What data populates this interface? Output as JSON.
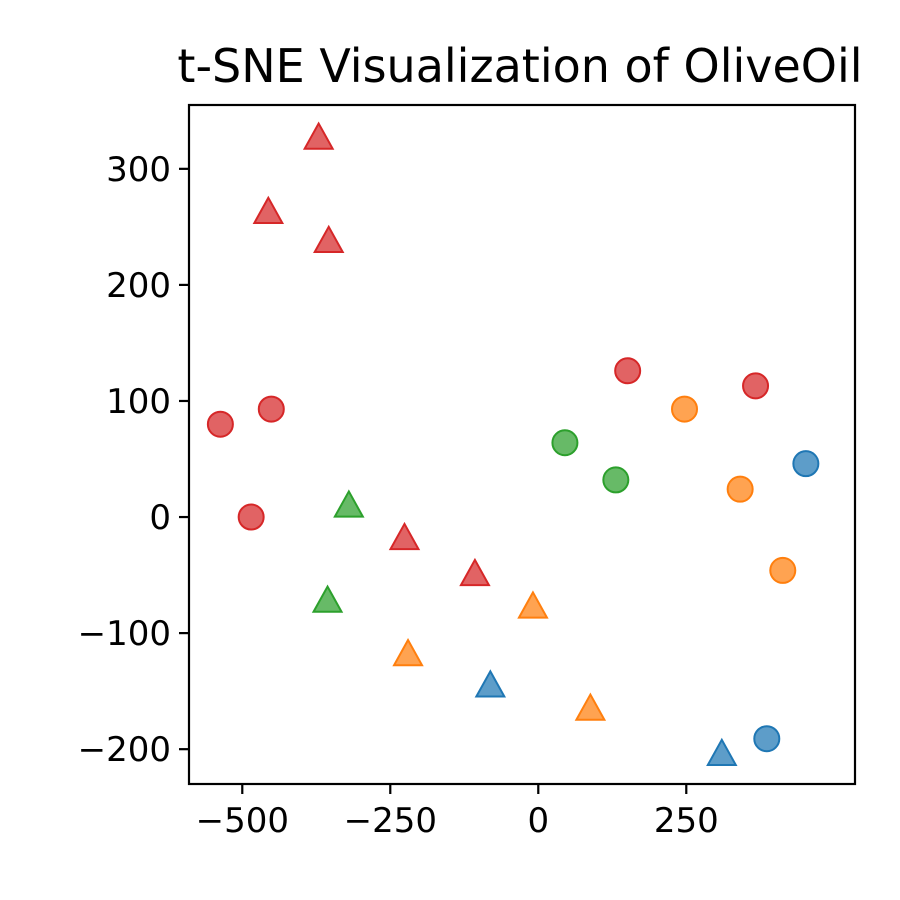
{
  "chart_data": {
    "type": "scatter",
    "title": "t-SNE Visualization of OliveOil",
    "xlabel": "",
    "ylabel": "",
    "xlim": [
      -590,
      535
    ],
    "ylim": [
      -230,
      355
    ],
    "xticks": [
      -500,
      -250,
      0,
      250
    ],
    "xtick_labels": [
      "−500",
      "−250",
      "0",
      "250"
    ],
    "yticks": [
      -200,
      -100,
      0,
      100,
      200,
      300
    ],
    "ytick_labels": [
      "−200",
      "−100",
      "0",
      "100",
      "200",
      "300"
    ],
    "grid": false,
    "legend": "none",
    "series": [
      {
        "color": "#d62728",
        "marker": "circle",
        "points": [
          [
            -537,
            80
          ],
          [
            -451,
            93
          ],
          [
            -485,
            0
          ],
          [
            151,
            126
          ],
          [
            367,
            113
          ]
        ]
      },
      {
        "color": "#d62728",
        "marker": "triangle",
        "points": [
          [
            -371,
            327
          ],
          [
            -456,
            263
          ],
          [
            -354,
            238
          ],
          [
            -226,
            -18
          ],
          [
            -107,
            -49
          ]
        ]
      },
      {
        "color": "#2ca02c",
        "marker": "circle",
        "points": [
          [
            45,
            64
          ],
          [
            131,
            32
          ]
        ]
      },
      {
        "color": "#2ca02c",
        "marker": "triangle",
        "points": [
          [
            -320,
            10
          ],
          [
            -356,
            -72
          ]
        ]
      },
      {
        "color": "#ff7f0e",
        "marker": "circle",
        "points": [
          [
            247,
            93
          ],
          [
            341,
            24
          ],
          [
            413,
            -46
          ]
        ]
      },
      {
        "color": "#ff7f0e",
        "marker": "triangle",
        "points": [
          [
            -220,
            -118
          ],
          [
            -9,
            -77
          ],
          [
            88,
            -165
          ]
        ]
      },
      {
        "color": "#1f77b4",
        "marker": "circle",
        "points": [
          [
            452,
            46
          ],
          [
            386,
            -191
          ]
        ]
      },
      {
        "color": "#1f77b4",
        "marker": "triangle",
        "points": [
          [
            -81,
            -145
          ],
          [
            310,
            -204
          ]
        ]
      }
    ]
  }
}
